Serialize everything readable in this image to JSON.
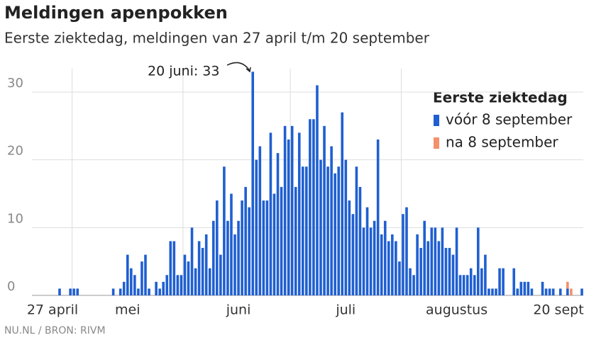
{
  "chart_data": {
    "type": "bar",
    "title": "Meldingen apenpokken",
    "subtitle": "Eerste ziektedag, meldingen van 27 april t/m 20 september",
    "source": "NU.NL / BRON: RIVM",
    "annotation": "20 juni: 33",
    "legend_title": "Eerste ziektedag",
    "legend_position": "top-right",
    "stacked": true,
    "grid": true,
    "ylim": [
      0,
      34
    ],
    "yticks": [
      0,
      10,
      20,
      30
    ],
    "categories": [
      "27 april",
      null,
      null,
      null,
      "mei",
      null,
      null,
      null,
      null,
      null,
      null,
      null,
      null,
      null,
      null,
      null,
      null,
      null,
      null,
      null,
      null,
      null,
      null,
      null,
      null,
      null,
      null,
      null,
      null,
      null,
      null,
      null,
      null,
      null,
      null,
      "juni",
      null,
      null,
      null,
      null,
      null,
      null,
      null,
      null,
      null,
      null,
      null,
      null,
      null,
      null,
      null,
      null,
      null,
      null,
      null,
      null,
      null,
      null,
      null,
      null,
      null,
      null,
      null,
      null,
      null,
      "juli",
      null,
      null,
      null,
      null,
      null,
      null,
      null,
      null,
      null,
      null,
      null,
      null,
      null,
      null,
      null,
      null,
      null,
      null,
      null,
      null,
      null,
      null,
      null,
      null,
      null,
      null,
      null,
      null,
      null,
      null,
      "augustus",
      null,
      null,
      null,
      null,
      null,
      null,
      null,
      null,
      null,
      null,
      null,
      null,
      null,
      null,
      null,
      null,
      null,
      null,
      null,
      null,
      null,
      null,
      null,
      null,
      null,
      null,
      null,
      null,
      null,
      null,
      null,
      null,
      null,
      null,
      null,
      null,
      null,
      null,
      null,
      null,
      null,
      null,
      null,
      null,
      null,
      null,
      null,
      null,
      null,
      "20 sept"
    ],
    "series": [
      {
        "name": "vóór 8 september",
        "color": "#1f5fd1",
        "values": [
          1,
          0,
          0,
          1,
          1,
          1,
          0,
          0,
          0,
          0,
          0,
          0,
          0,
          0,
          0,
          1,
          0,
          1,
          2,
          6,
          4,
          3,
          1,
          5,
          6,
          1,
          0,
          2,
          1,
          2,
          3,
          8,
          8,
          3,
          3,
          6,
          5,
          10,
          4,
          8,
          7,
          9,
          4,
          11,
          14,
          6,
          19,
          11,
          15,
          9,
          11,
          14,
          16,
          13,
          33,
          20,
          22,
          14,
          14,
          24,
          15,
          21,
          16,
          25,
          23,
          25,
          16,
          24,
          19,
          19,
          26,
          26,
          31,
          20,
          25,
          19,
          22,
          18,
          19,
          27,
          20,
          14,
          12,
          19,
          16,
          10,
          13,
          10,
          11,
          23,
          9,
          11,
          8,
          9,
          8,
          5,
          12,
          13,
          4,
          3,
          9,
          7,
          11,
          8,
          10,
          10,
          8,
          10,
          7,
          7,
          6,
          10,
          3,
          3,
          3,
          4,
          3,
          10,
          4,
          6,
          1,
          1,
          1,
          4,
          4,
          0,
          0,
          4,
          1,
          2,
          2,
          2,
          1,
          0,
          0,
          2,
          1,
          1,
          1,
          0,
          1,
          0,
          1,
          0,
          0,
          0,
          1
        ]
      },
      {
        "name": "na 8 september",
        "color": "#f4906a",
        "values": [
          0,
          0,
          0,
          0,
          0,
          0,
          0,
          0,
          0,
          0,
          0,
          0,
          0,
          0,
          0,
          0,
          0,
          0,
          0,
          0,
          0,
          0,
          0,
          0,
          0,
          0,
          0,
          0,
          0,
          0,
          0,
          0,
          0,
          0,
          0,
          0,
          0,
          0,
          0,
          0,
          0,
          0,
          0,
          0,
          0,
          0,
          0,
          0,
          0,
          0,
          0,
          0,
          0,
          0,
          0,
          0,
          0,
          0,
          0,
          0,
          0,
          0,
          0,
          0,
          0,
          0,
          0,
          0,
          0,
          0,
          0,
          0,
          0,
          0,
          0,
          0,
          0,
          0,
          0,
          0,
          0,
          0,
          0,
          0,
          0,
          0,
          0,
          0,
          0,
          0,
          0,
          0,
          0,
          0,
          0,
          0,
          0,
          0,
          0,
          0,
          0,
          0,
          0,
          0,
          0,
          0,
          0,
          0,
          0,
          0,
          0,
          0,
          0,
          0,
          0,
          0,
          0,
          0,
          0,
          0,
          0,
          0,
          0,
          0,
          0,
          0,
          0,
          0,
          0,
          0,
          0,
          0,
          0,
          0,
          0,
          0,
          0,
          0,
          0,
          0,
          0,
          0,
          1,
          1,
          0,
          0,
          0
        ]
      }
    ]
  }
}
